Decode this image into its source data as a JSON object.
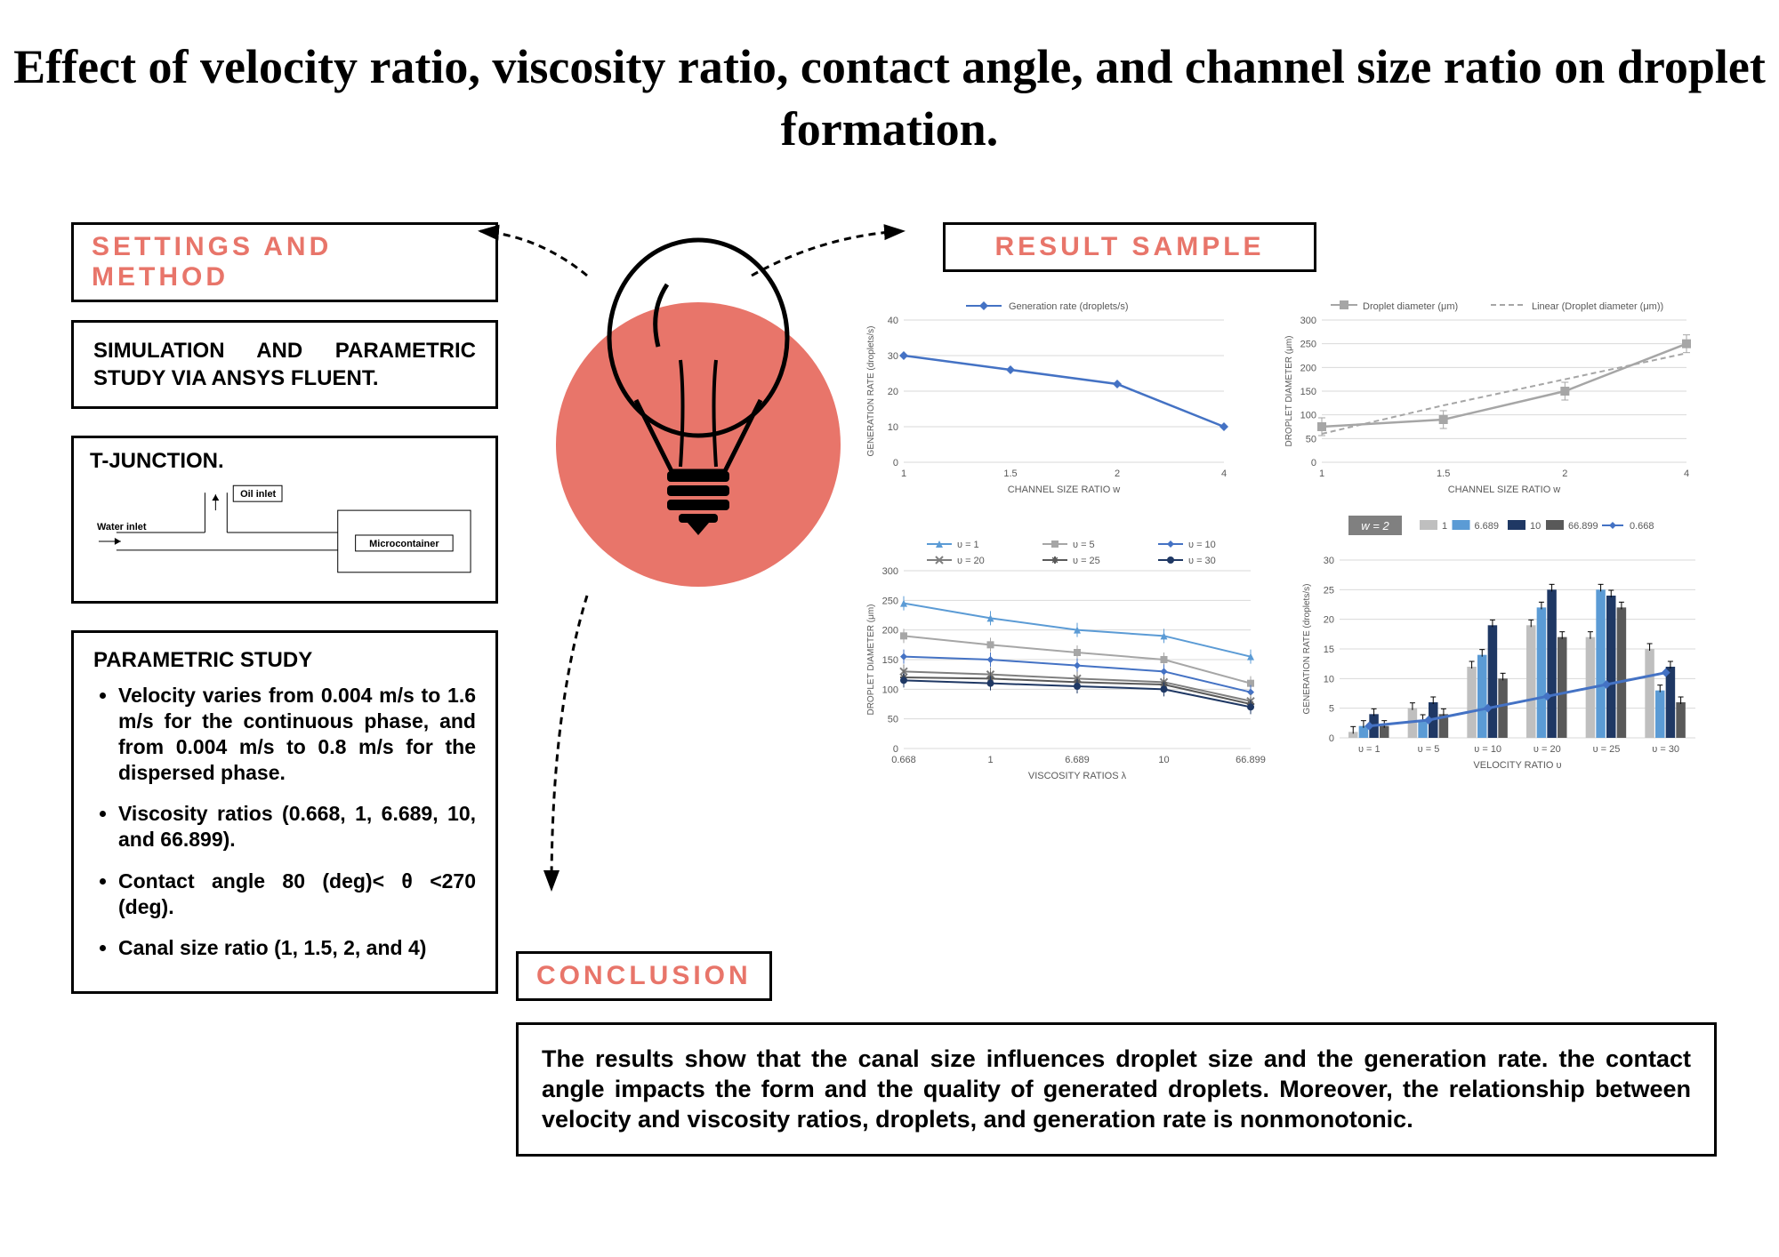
{
  "title": "Effect of velocity ratio, viscosity ratio, contact angle, and channel size ratio on droplet formation.",
  "sections": {
    "settings": "SETTINGS AND METHOD",
    "result": "RESULT SAMPLE",
    "conclusion": "CONCLUSION"
  },
  "simulation_text": "SIMULATION AND PARAMETRIC STUDY VIA ANSYS FLUENT.",
  "tjunction": {
    "title": "T-JUNCTION.",
    "oil_inlet": "Oil inlet",
    "water_inlet": "Water inlet",
    "microcontainer": "Microcontainer"
  },
  "parametric": {
    "title": "PARAMETRIC STUDY",
    "items": [
      "Velocity varies from 0.004 m/s to 1.6 m/s for the continuous phase, and from 0.004 m/s to 0.8 m/s for the dispersed phase.",
      "Viscosity ratios (0.668, 1, 6.689, 10, and 66.899).",
      "Contact angle 80 (deg)< θ <270 (deg).",
      "Canal size ratio (1, 1.5, 2, and 4)"
    ]
  },
  "conclusion_text": "The results show that the canal size influences droplet size and the generation rate. the contact angle impacts the form and the quality of generated droplets. Moreover, the relationship between velocity and viscosity ratios, droplets, and generation rate is nonmonotonic.",
  "colors": {
    "accent": "#e8756a",
    "blue_line": "#4472c4",
    "gray_line": "#a6a6a6",
    "light_blue": "#5b9bd5",
    "dark_navy": "#1f3864",
    "mid_blue": "#2f5597",
    "dark_gray": "#595959",
    "grid": "#d9d9d9"
  },
  "chart1": {
    "type": "line",
    "legend": "Generation rate (droplets/s)",
    "ylabel": "GENERATION RATE (droplets/s)",
    "xlabel": "CHANNEL SIZE RATIO w",
    "x": [
      "1",
      "1.5",
      "2",
      "4"
    ],
    "y": [
      30,
      26,
      22,
      10
    ],
    "ylim": [
      0,
      40
    ],
    "ytick": 10,
    "color": "#4472c4",
    "marker": "diamond"
  },
  "chart2": {
    "type": "line",
    "legend": [
      "Droplet diameter (μm)",
      "Linear (Droplet diameter (μm))"
    ],
    "ylabel": "DROPLET DIAMETER (μm)",
    "xlabel": "CHANNEL SIZE RATIO w",
    "x": [
      "1",
      "1.5",
      "2",
      "4"
    ],
    "y": [
      75,
      90,
      150,
      250
    ],
    "linear_y": [
      60,
      120,
      175,
      230
    ],
    "ylim": [
      0,
      300
    ],
    "ytick": 50,
    "color": "#a6a6a6",
    "marker": "square"
  },
  "chart3": {
    "type": "line-multi",
    "ylabel": "DROPLET DIAMETER (μm)",
    "xlabel": "VISCOSITY RATIOS λ",
    "x": [
      "0.668",
      "1",
      "6.689",
      "10",
      "66.899"
    ],
    "ylim": [
      0,
      300
    ],
    "ytick": 50,
    "series": [
      {
        "name": "υ = 1",
        "color": "#5b9bd5",
        "marker": "triangle",
        "y": [
          245,
          220,
          200,
          190,
          155
        ]
      },
      {
        "name": "υ = 5",
        "color": "#a6a6a6",
        "marker": "square",
        "y": [
          190,
          175,
          162,
          150,
          110
        ]
      },
      {
        "name": "υ = 10",
        "color": "#4472c4",
        "marker": "diamond",
        "y": [
          155,
          150,
          140,
          130,
          95
        ]
      },
      {
        "name": "υ = 20",
        "color": "#7f7f7f",
        "marker": "x",
        "y": [
          130,
          125,
          118,
          112,
          80
        ]
      },
      {
        "name": "υ = 25",
        "color": "#595959",
        "marker": "star",
        "y": [
          120,
          118,
          112,
          108,
          75
        ]
      },
      {
        "name": "υ = 30",
        "color": "#1f3864",
        "marker": "circle",
        "y": [
          115,
          110,
          105,
          100,
          70
        ]
      }
    ]
  },
  "chart4": {
    "type": "grouped-bar",
    "title_badge": "w = 2",
    "ylabel": "GENERATION RATE (droplets/s)",
    "xlabel": "VELOCITY RATIO υ",
    "x": [
      "υ = 1",
      "υ = 5",
      "υ = 10",
      "υ = 20",
      "υ = 25",
      "υ = 30"
    ],
    "ylim": [
      0,
      30
    ],
    "ytick": 5,
    "legend": [
      {
        "name": "1",
        "color": "#bfbfbf"
      },
      {
        "name": "6.689",
        "color": "#5b9bd5"
      },
      {
        "name": "10",
        "color": "#1f3864"
      },
      {
        "name": "66.899",
        "color": "#595959"
      },
      {
        "name": "0.668",
        "color": "#4472c4"
      }
    ],
    "bars": {
      "1": [
        1,
        5,
        12,
        19,
        17,
        15
      ],
      "6.689": [
        2,
        3,
        14,
        22,
        25,
        8
      ],
      "10": [
        4,
        6,
        19,
        25,
        24,
        12
      ],
      "66.899": [
        2,
        4,
        10,
        17,
        22,
        6
      ]
    },
    "line_series": {
      "name": "0.668",
      "color": "#4472c4",
      "y": [
        2,
        3,
        5,
        7,
        9,
        11
      ]
    }
  }
}
